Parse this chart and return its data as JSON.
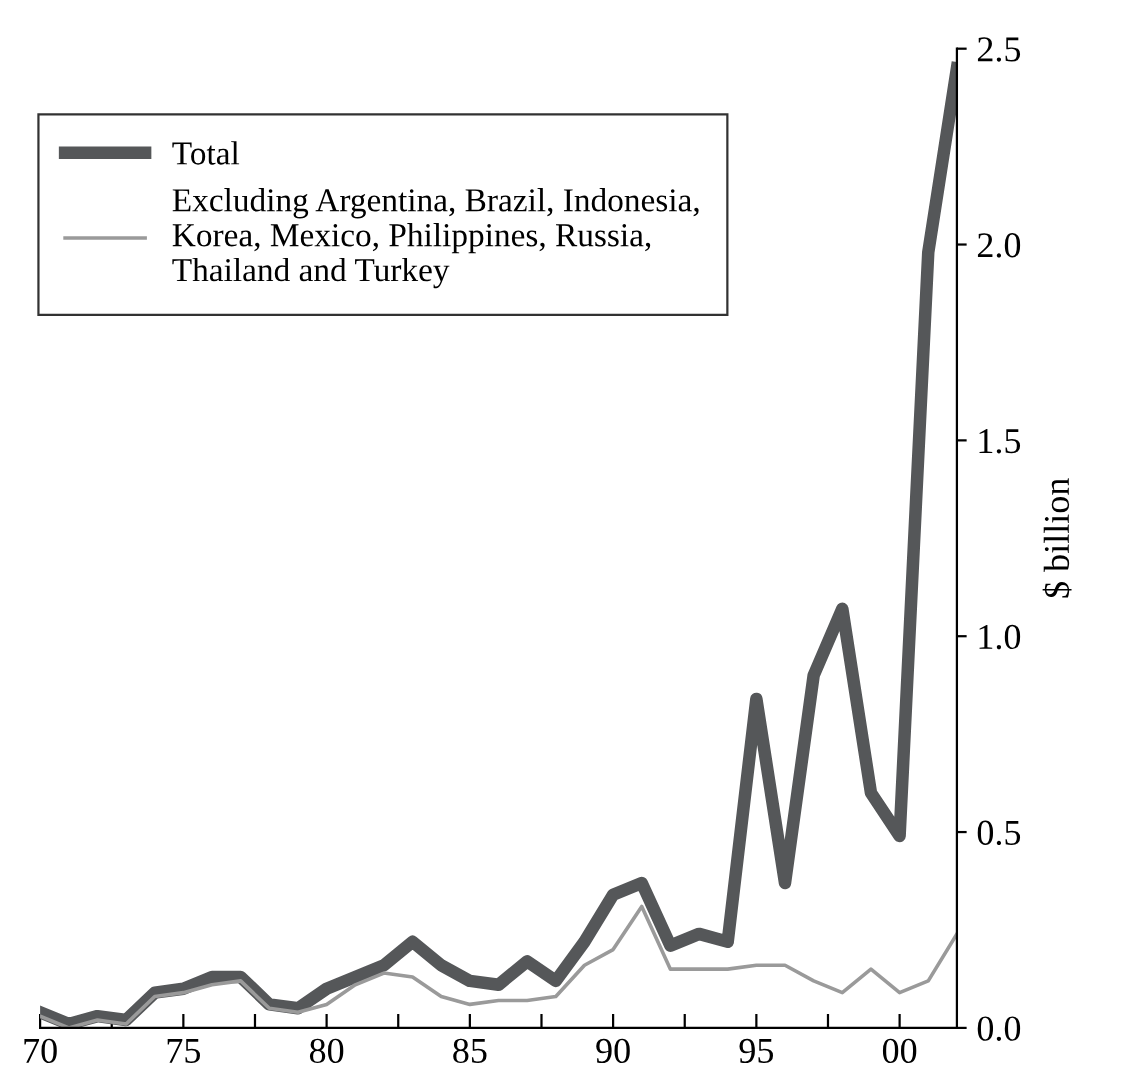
{
  "chart_data": {
    "type": "line",
    "ylabel": "$ billion",
    "legend": "top left",
    "grid": false,
    "x": [
      1970,
      1971,
      1972,
      1973,
      1974,
      1975,
      1976,
      1977,
      1978,
      1979,
      1980,
      1981,
      1982,
      1983,
      1984,
      1985,
      1986,
      1987,
      1988,
      1989,
      1990,
      1991,
      1992,
      1993,
      1994,
      1995,
      1996,
      1997,
      1998,
      1999,
      2000,
      2001,
      2002
    ],
    "xlim": [
      1970,
      2002
    ],
    "xticks": [
      {
        "value": 1970,
        "label": "70"
      },
      {
        "value": 1972.5,
        "label": null
      },
      {
        "value": 1975,
        "label": "75"
      },
      {
        "value": 1977.5,
        "label": null
      },
      {
        "value": 1980,
        "label": "80"
      },
      {
        "value": 1982.5,
        "label": null
      },
      {
        "value": 1985,
        "label": "85"
      },
      {
        "value": 1987.5,
        "label": null
      },
      {
        "value": 1990,
        "label": "90"
      },
      {
        "value": 1992.5,
        "label": null
      },
      {
        "value": 1995,
        "label": "95"
      },
      {
        "value": 1997.5,
        "label": null
      },
      {
        "value": 2000,
        "label": "00"
      }
    ],
    "ylim": [
      0,
      2.5
    ],
    "yticks": [
      {
        "value": 0,
        "label": "0.0"
      },
      0.5,
      {
        "value": 1,
        "label": "1.0"
      },
      1.5,
      {
        "value": 2,
        "label": "2.0"
      },
      2.5
    ],
    "series": [
      {
        "name": "Total",
        "color": "#555759",
        "values": [
          0.04,
          0.01,
          0.03,
          0.02,
          0.09,
          0.1,
          0.13,
          0.13,
          0.06,
          0.05,
          0.1,
          0.13,
          0.16,
          0.22,
          0.16,
          0.12,
          0.11,
          0.17,
          0.12,
          0.22,
          0.34,
          0.37,
          0.21,
          0.24,
          0.22,
          0.84,
          0.37,
          0.9,
          1.07,
          0.6,
          0.49,
          1.98,
          2.45
        ]
      },
      {
        "name": "Excluding Argentina, Brazil, Indonesia,\nKorea, Mexico, Philippines, Russia,\nThailand and Turkey",
        "color": "#9a9a9a",
        "values": [
          0.03,
          0.0,
          0.02,
          0.01,
          0.08,
          0.09,
          0.11,
          0.12,
          0.05,
          0.04,
          0.06,
          0.11,
          0.14,
          0.13,
          0.08,
          0.06,
          0.07,
          0.07,
          0.08,
          0.16,
          0.2,
          0.31,
          0.15,
          0.15,
          0.15,
          0.16,
          0.16,
          0.12,
          0.09,
          0.15,
          0.09,
          0.12,
          0.24
        ]
      }
    ]
  }
}
